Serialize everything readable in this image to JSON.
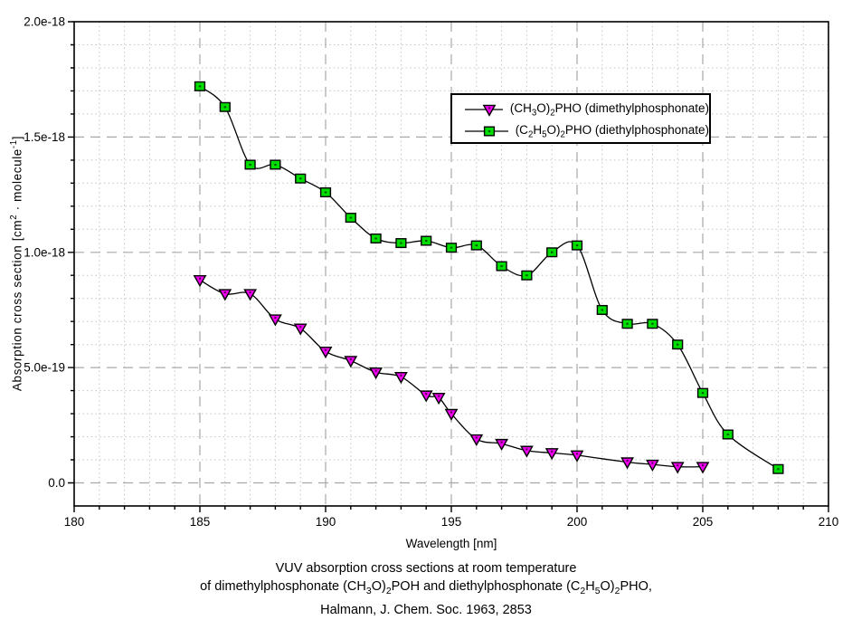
{
  "figure": {
    "caption_lines": [
      "VUV absorption cross sections at room temperature",
      "of dimethylphosphonate (CH~3~O)~2~POH and diethylphosphonate (C~2~H~5~O)~2~PHO,",
      "Halmann, J. Chem. Soc. 1963, 2853"
    ]
  },
  "chart_data": {
    "type": "line",
    "title": "",
    "xlabel": "Wavelength [nm]",
    "ylabel": "Absorption cross section [cm^2^ · molecule^-1^]",
    "xlim": [
      180,
      210
    ],
    "ylim": [
      -1e-19,
      2e-18
    ],
    "x_major_ticks": [
      180,
      185,
      190,
      195,
      200,
      205,
      210
    ],
    "x_tick_labels": [
      "180",
      "185",
      "190",
      "195",
      "200",
      "205",
      "210"
    ],
    "x_minor_step": 1,
    "y_major_ticks": [
      0,
      5e-19,
      1e-18,
      1.5e-18,
      2e-18
    ],
    "y_tick_labels": [
      "0.0",
      "5.0e-19",
      "1.0e-18",
      "1.5e-18",
      "2.0e-18"
    ],
    "y_minor_step": 1e-19,
    "grid": "major dashed gray, minor dotted light-gray",
    "legend_position": "upper right inside plot",
    "line_color": "#000000",
    "grid_major_color": "#a8a8a8",
    "grid_minor_color": "#c4c4c4",
    "series": [
      {
        "name": "(CH~3~O)~2~PHO (dimethylphosphonate)",
        "marker": "triangle-down",
        "color": "#ee00ee",
        "x": [
          185,
          186,
          187,
          188,
          189,
          190,
          191,
          192,
          193,
          194,
          194.5,
          195,
          196,
          197,
          198,
          199,
          200,
          202,
          203,
          204,
          205
        ],
        "y": [
          8.8e-19,
          8.2e-19,
          8.2e-19,
          7.1e-19,
          6.7e-19,
          5.7e-19,
          5.3e-19,
          4.8e-19,
          4.6e-19,
          3.8e-19,
          3.7e-19,
          3e-19,
          1.9e-19,
          1.7e-19,
          1.4e-19,
          1.3e-19,
          1.2e-19,
          9e-20,
          8e-20,
          7e-20,
          7e-20
        ]
      },
      {
        "name": "(C~2~H~5~O)~2~PHO (diethylphosphonate)",
        "marker": "square",
        "color": "#00dd00",
        "x": [
          185,
          186,
          187,
          188,
          189,
          190,
          191,
          192,
          193,
          194,
          195,
          196,
          197,
          198,
          199,
          200,
          201,
          202,
          203,
          204,
          205,
          206,
          208
        ],
        "y": [
          1.72e-18,
          1.63e-18,
          1.38e-18,
          1.38e-18,
          1.32e-18,
          1.26e-18,
          1.15e-18,
          1.06e-18,
          1.04e-18,
          1.05e-18,
          1.02e-18,
          1.03e-18,
          9.4e-19,
          9e-19,
          1e-18,
          1.03e-18,
          7.5e-19,
          6.9e-19,
          6.9e-19,
          6e-19,
          3.9e-19,
          2.1e-19,
          6e-20
        ]
      }
    ]
  }
}
